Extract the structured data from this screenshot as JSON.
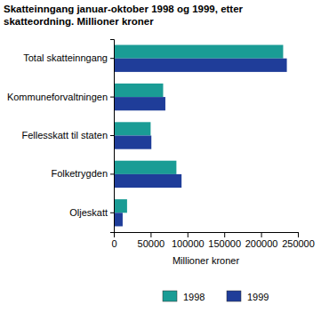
{
  "chart_data": {
    "type": "bar",
    "orientation": "horizontal",
    "title": "Skatteinngang januar-oktober 1998 og 1999, etter skatteordning. Millioner kroner",
    "categories": [
      "Total skatteinngang",
      "Kommuneforvaltningen",
      "Fellesskatt til staten",
      "Folketrygden",
      "Oljeskatt"
    ],
    "series": [
      {
        "name": "1998",
        "color": "#1a9c95",
        "values": [
          230000,
          67000,
          50000,
          85000,
          18000
        ]
      },
      {
        "name": "1999",
        "color": "#1f3d99",
        "values": [
          235000,
          70000,
          51000,
          92000,
          12000
        ]
      }
    ],
    "x_label": "Millioner kroner",
    "xlim": [
      0,
      250000
    ],
    "xticks": [
      0,
      50000,
      100000,
      150000,
      200000,
      250000
    ],
    "grid": false,
    "legend": "bottom"
  }
}
